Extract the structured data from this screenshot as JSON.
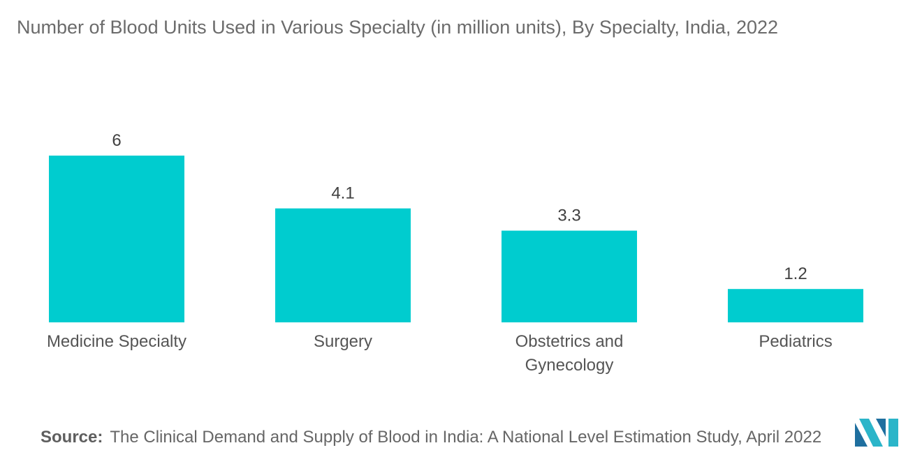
{
  "chart_data": {
    "type": "bar",
    "title": "Number of Blood Units Used in Various Specialty (in million units), By Specialty, India, 2022",
    "categories": [
      [
        "Medicine Specialty"
      ],
      [
        "Surgery"
      ],
      [
        "Obstetrics and",
        "Gynecology"
      ],
      [
        "Pediatrics"
      ]
    ],
    "values": [
      6,
      4.1,
      3.3,
      1.2
    ],
    "value_labels": [
      "6",
      "4.1",
      "3.3",
      "1.2"
    ],
    "xlabel": "",
    "ylabel": "",
    "ylim": [
      0,
      6
    ],
    "grid": false,
    "bar_color": "#00cccf"
  },
  "source": {
    "label": "Source:",
    "text": "The Clinical Demand and Supply of Blood in India: A National Level Estimation Study, April 2022"
  },
  "logo": {
    "icon": "mordor-intelligence-logo",
    "colors": [
      "#1f6f9f",
      "#2bb5c9"
    ]
  }
}
